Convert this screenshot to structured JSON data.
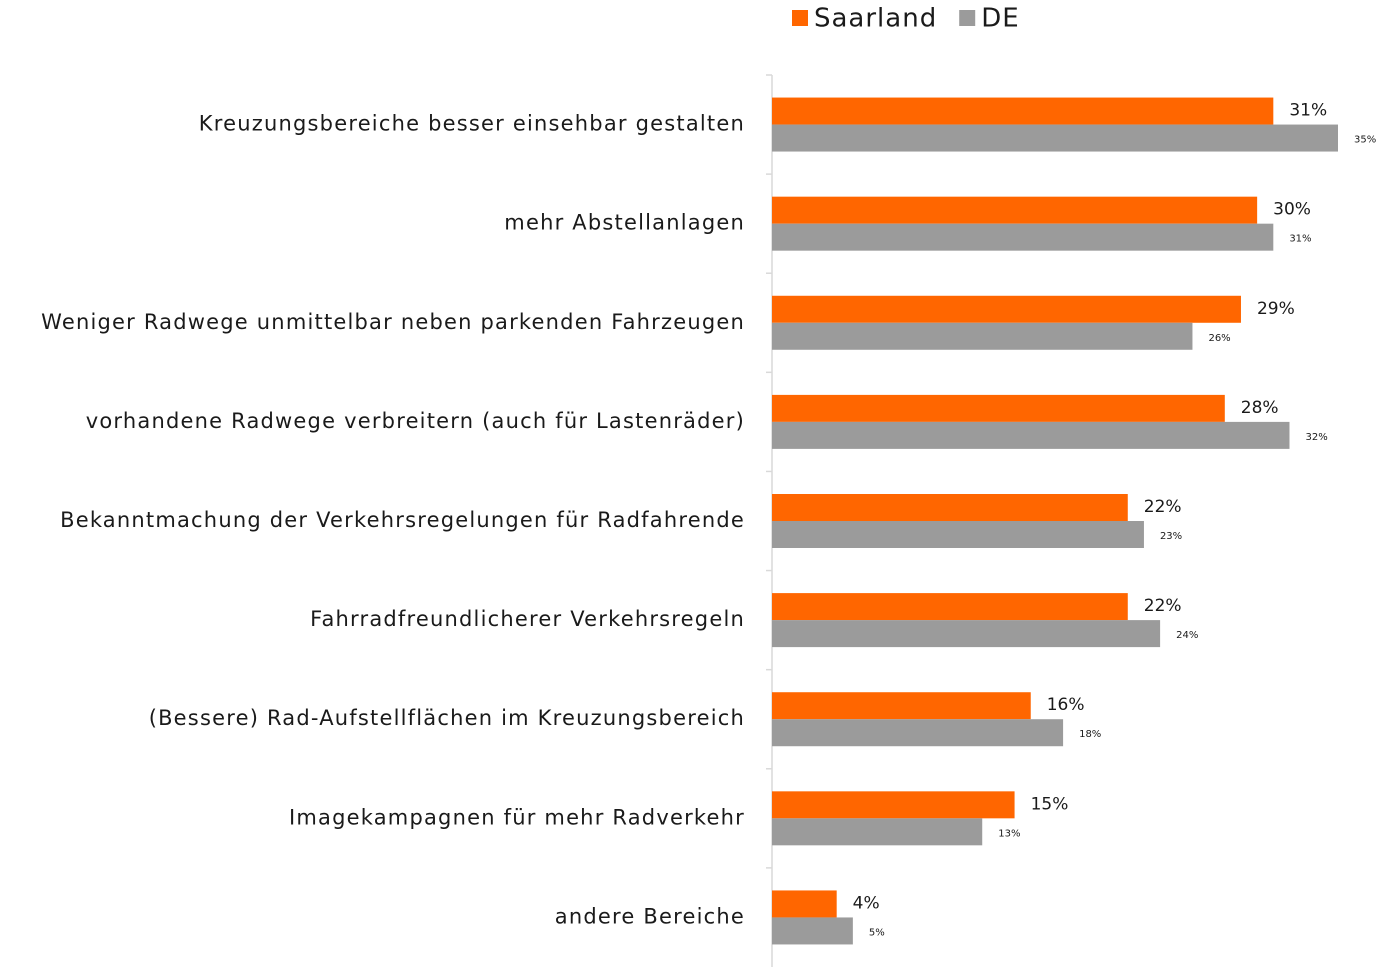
{
  "chart_data": {
    "type": "hbar",
    "categories": [
      "Kreuzungsbereiche besser einsehbar gestalten",
      "mehr Abstellanlagen",
      "Weniger Radwege unmittelbar neben parkenden Fahrzeugen",
      "vorhandene Radwege verbreitern (auch für Lastenräder)",
      "Bekanntmachung der Verkehrsregelungen für Radfahrende",
      "Fahrradfreundlicherer Verkehrsregeln",
      "(Bessere) Rad-Aufstellflächen im Kreuzungsbereich",
      "Imagekampagnen für mehr Radverkehr",
      "andere Bereiche"
    ],
    "series": [
      {
        "name": "Saarland",
        "color": "#ff6600",
        "values": [
          31,
          30,
          29,
          28,
          22,
          22,
          16,
          15,
          4
        ],
        "value_labels": [
          "31%",
          "30%",
          "29%",
          "28%",
          "22%",
          "22%",
          "16%",
          "15%",
          "4%"
        ]
      },
      {
        "name": "DE",
        "color": "#9b9b9b",
        "values": [
          35,
          31,
          26,
          32,
          23,
          24,
          18,
          13,
          5
        ],
        "value_labels": [
          "35%",
          "31%",
          "26%",
          "32%",
          "23%",
          "24%",
          "18%",
          "13%",
          "5%"
        ]
      }
    ],
    "xlim": [
      0,
      35
    ],
    "legend": "top"
  }
}
